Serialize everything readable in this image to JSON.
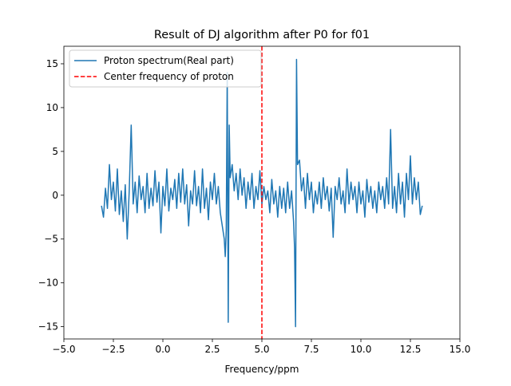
{
  "chart_data": {
    "type": "line",
    "title": "Result of DJ algorithm after P0 for f01",
    "x_label": "Frequency/ppm",
    "xlim": [
      -5,
      15
    ],
    "ylim": [
      -16.4,
      17
    ],
    "xticks": [
      {
        "value": -5,
        "label": "−5.0"
      },
      {
        "value": -2.5,
        "label": "−2.5"
      },
      {
        "value": 0,
        "label": "0.0"
      },
      {
        "value": 2.5,
        "label": "2.5"
      },
      {
        "value": 5,
        "label": "5.0"
      },
      {
        "value": 7.5,
        "label": "7.5"
      },
      {
        "value": 10,
        "label": "10.0"
      },
      {
        "value": 12.5,
        "label": "12.5"
      },
      {
        "value": 15,
        "label": "15.0"
      }
    ],
    "yticks": [
      {
        "value": -15,
        "label": "−15"
      },
      {
        "value": -10,
        "label": "−10"
      },
      {
        "value": -5,
        "label": "−5"
      },
      0,
      5,
      10,
      15
    ],
    "legend": "upper left",
    "series": [
      {
        "name": "Proton spectrum(Real part)",
        "color": "#1f77b4",
        "x": [
          -3.1,
          -3.0,
          -2.9,
          -2.8,
          -2.7,
          -2.6,
          -2.5,
          -2.4,
          -2.3,
          -2.2,
          -2.1,
          -2.0,
          -1.9,
          -1.8,
          -1.7,
          -1.6,
          -1.5,
          -1.4,
          -1.3,
          -1.2,
          -1.1,
          -1.0,
          -0.9,
          -0.8,
          -0.7,
          -0.6,
          -0.5,
          -0.4,
          -0.3,
          -0.2,
          -0.1,
          0.0,
          0.1,
          0.2,
          0.3,
          0.4,
          0.5,
          0.6,
          0.7,
          0.8,
          0.9,
          1.0,
          1.1,
          1.2,
          1.3,
          1.4,
          1.5,
          1.6,
          1.7,
          1.8,
          1.9,
          2.0,
          2.1,
          2.2,
          2.3,
          2.4,
          2.5,
          2.6,
          2.7,
          2.8,
          2.9,
          3.0,
          3.1,
          3.15,
          3.2,
          3.25,
          3.3,
          3.35,
          3.4,
          3.5,
          3.6,
          3.7,
          3.8,
          3.9,
          4.0,
          4.1,
          4.2,
          4.3,
          4.4,
          4.5,
          4.6,
          4.7,
          4.8,
          4.9,
          5.0,
          5.1,
          5.2,
          5.3,
          5.4,
          5.5,
          5.6,
          5.7,
          5.8,
          5.9,
          6.0,
          6.1,
          6.2,
          6.3,
          6.4,
          6.5,
          6.6,
          6.65,
          6.7,
          6.75,
          6.8,
          6.9,
          7.0,
          7.1,
          7.2,
          7.3,
          7.4,
          7.5,
          7.6,
          7.7,
          7.8,
          7.9,
          8.0,
          8.1,
          8.2,
          8.3,
          8.4,
          8.5,
          8.6,
          8.7,
          8.8,
          8.9,
          9.0,
          9.1,
          9.2,
          9.3,
          9.4,
          9.5,
          9.6,
          9.7,
          9.8,
          9.9,
          10.0,
          10.1,
          10.2,
          10.3,
          10.4,
          10.5,
          10.6,
          10.7,
          10.8,
          10.9,
          11.0,
          11.1,
          11.2,
          11.3,
          11.4,
          11.5,
          11.6,
          11.7,
          11.8,
          11.9,
          12.0,
          12.1,
          12.2,
          12.3,
          12.4,
          12.5,
          12.6,
          12.7,
          12.8,
          12.9,
          13.0,
          13.1
        ],
        "values": [
          -1.2,
          -2.5,
          0.8,
          -1.5,
          3.5,
          -0.5,
          1.5,
          -1.8,
          3.0,
          -2.2,
          0.5,
          -3.0,
          1.2,
          -5.0,
          0.5,
          8.0,
          -1.0,
          1.5,
          -2.0,
          2.2,
          -0.5,
          1.0,
          -2.0,
          2.5,
          -1.5,
          0.8,
          -1.2,
          2.8,
          -0.8,
          1.5,
          -4.3,
          1.0,
          -1.2,
          3.0,
          -1.8,
          0.8,
          -0.5,
          1.8,
          -1.5,
          2.5,
          -0.8,
          3.0,
          -1.0,
          1.2,
          -3.5,
          0.5,
          -1.0,
          2.8,
          -1.2,
          1.0,
          -2.0,
          3.0,
          -1.5,
          0.8,
          -2.8,
          1.5,
          -0.5,
          2.5,
          -1.0,
          1.0,
          -2.0,
          -3.5,
          -5.0,
          -7.0,
          -4.0,
          14.0,
          -14.5,
          8.0,
          2.0,
          3.5,
          0.5,
          2.5,
          -0.5,
          3.0,
          0.0,
          2.0,
          -1.5,
          1.5,
          -0.5,
          2.5,
          -1.5,
          1.0,
          -0.5,
          2.8,
          -1.0,
          1.0,
          -0.5,
          0.5,
          -2.0,
          1.8,
          -1.0,
          0.5,
          -2.5,
          1.0,
          -1.5,
          0.8,
          -2.0,
          1.5,
          -1.5,
          0.5,
          -3.0,
          -6.0,
          -15.0,
          15.5,
          3.5,
          4.0,
          0.5,
          2.0,
          -1.5,
          2.5,
          -0.5,
          1.5,
          -2.0,
          0.5,
          -1.0,
          1.5,
          -1.5,
          2.0,
          -0.5,
          1.0,
          -1.8,
          0.8,
          -4.8,
          1.0,
          -0.5,
          2.0,
          -1.0,
          0.5,
          -2.0,
          3.0,
          -1.0,
          1.5,
          -0.5,
          1.0,
          -2.0,
          1.5,
          -1.0,
          0.5,
          -2.5,
          1.8,
          -0.8,
          1.0,
          -1.5,
          0.5,
          -2.0,
          1.5,
          -0.5,
          1.0,
          -1.5,
          2.0,
          -1.0,
          7.5,
          -1.5,
          1.0,
          -2.0,
          2.5,
          -1.0,
          1.5,
          -2.5,
          2.5,
          -0.5,
          4.5,
          -1.0,
          2.0,
          -0.5,
          1.5,
          -2.2,
          -1.2
        ]
      },
      {
        "name": "Center frequency of proton",
        "color": "#ff0000",
        "linestyle": "dashed",
        "x": 5
      }
    ]
  }
}
